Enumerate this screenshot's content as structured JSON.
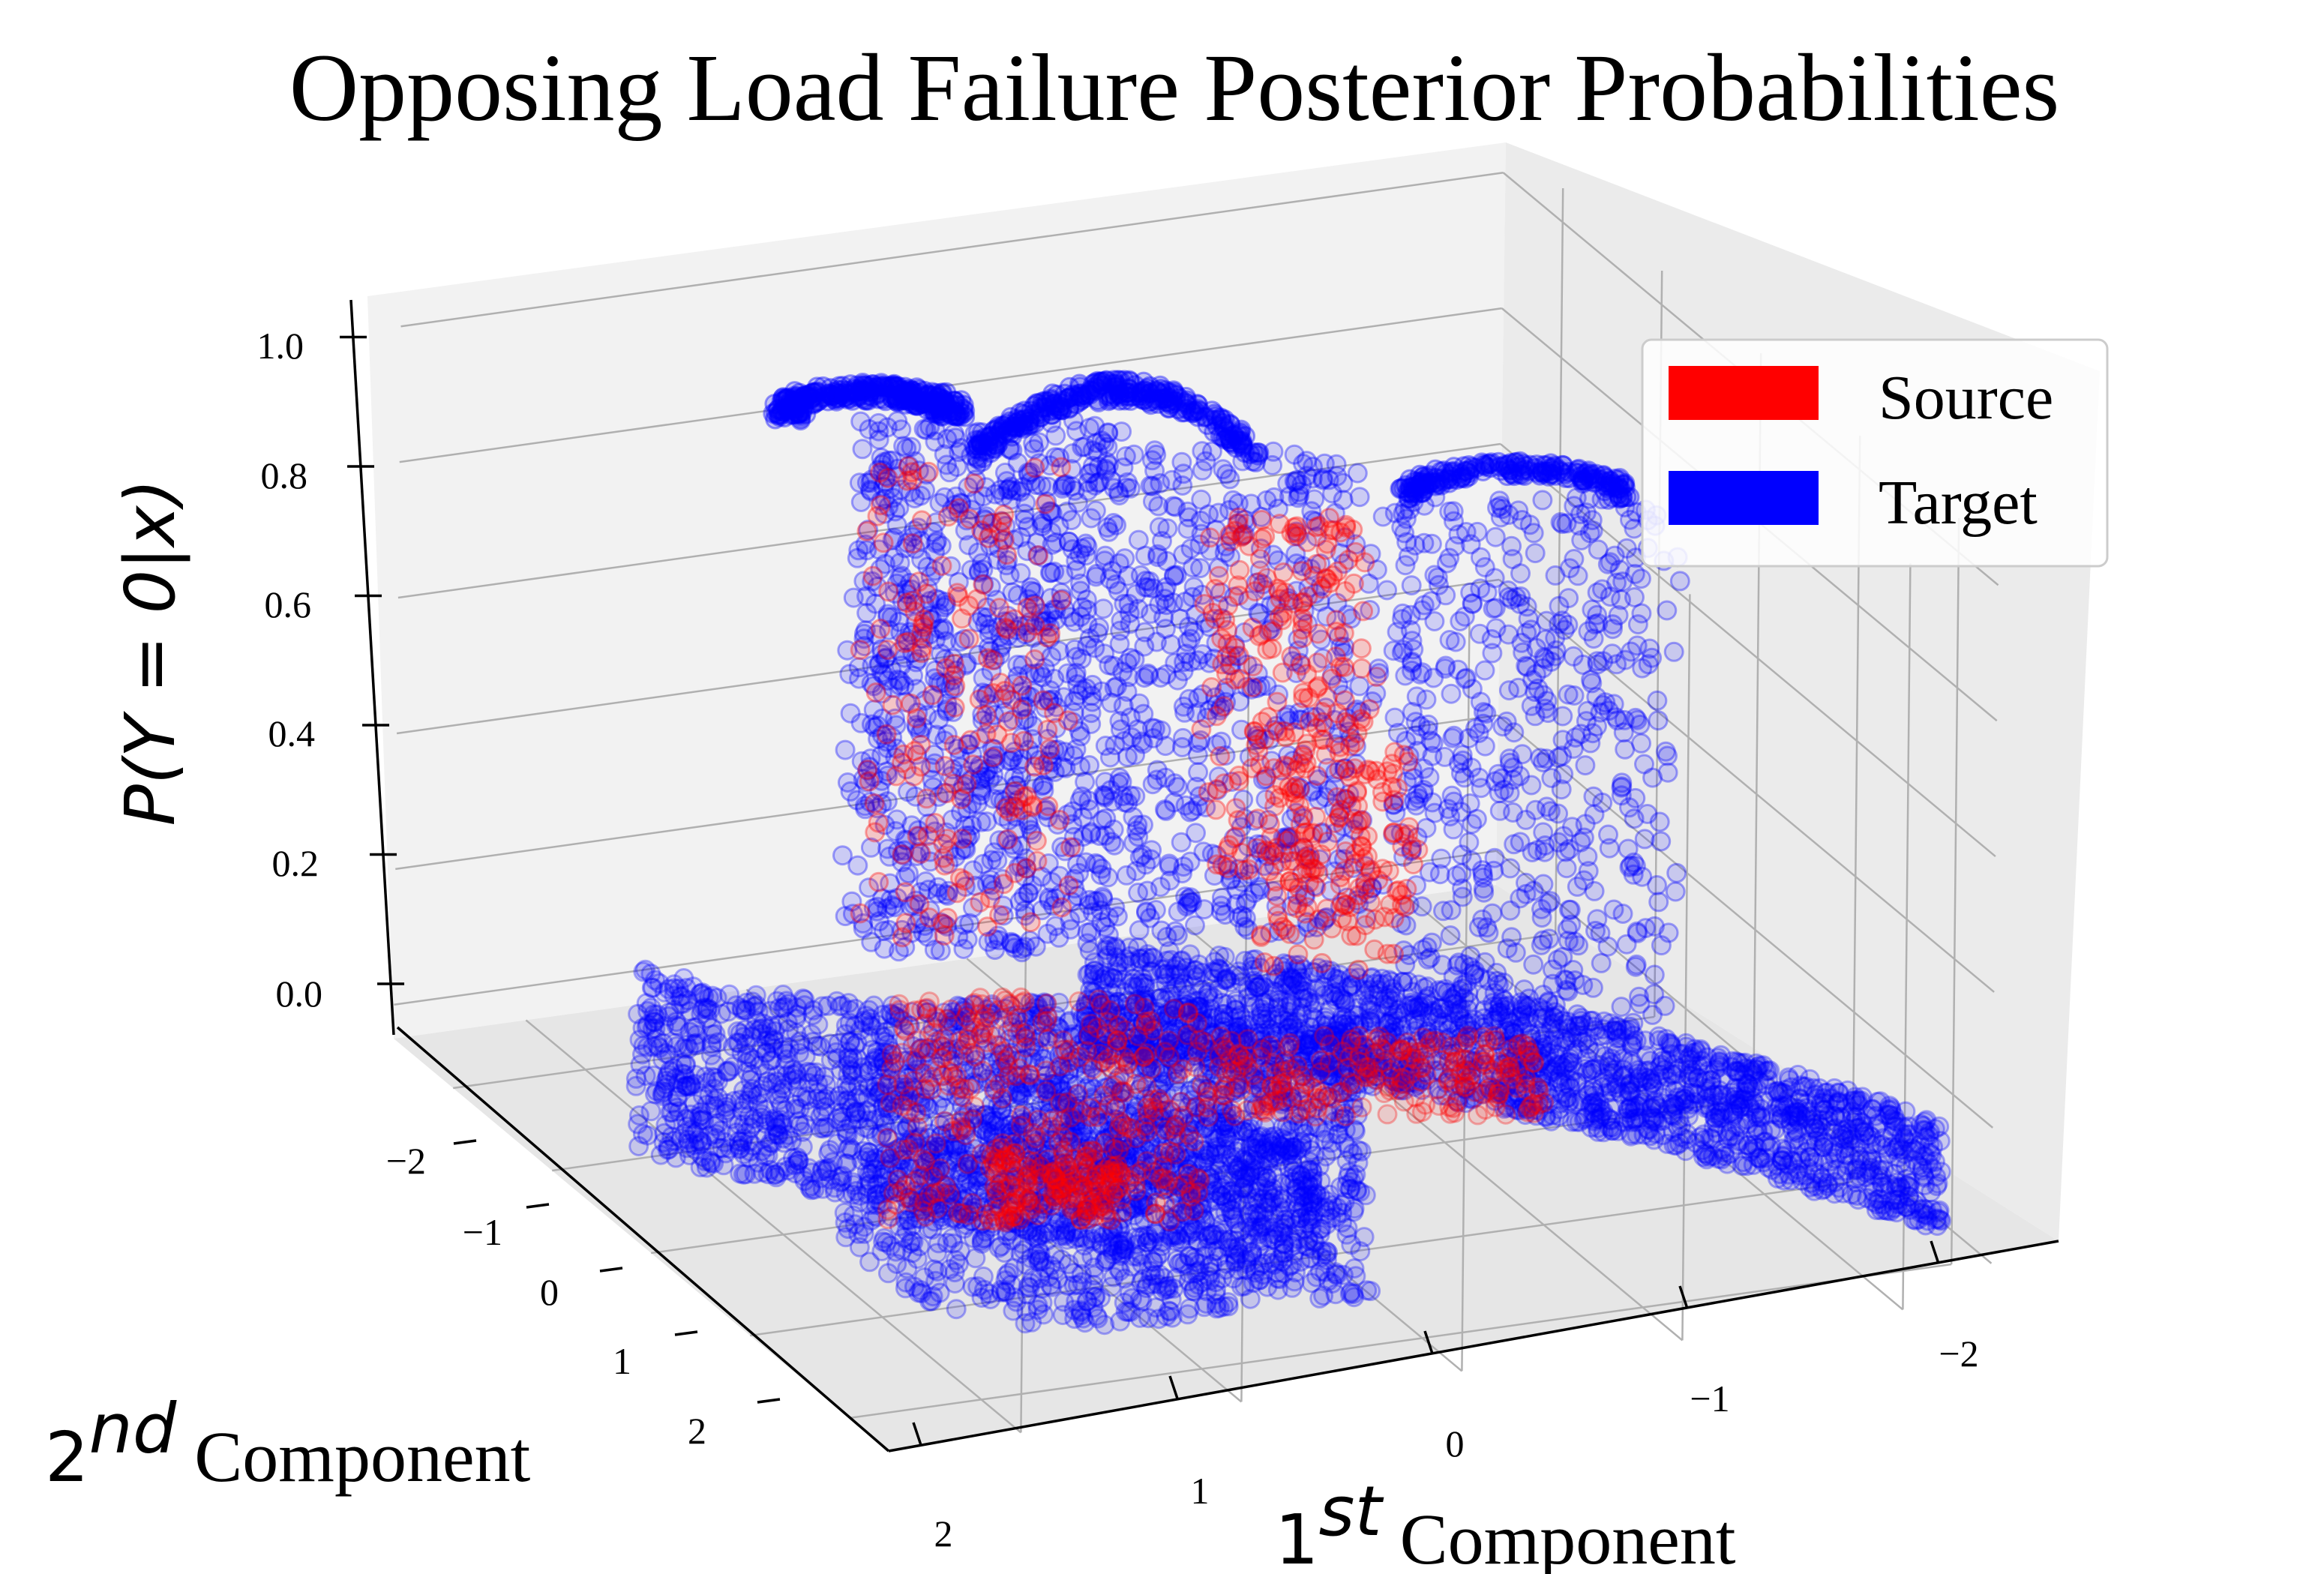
{
  "chart_data": {
    "type": "scatter",
    "subtype": "3d-scatter",
    "title": "Opposing Load Failure Posterior Probabilities",
    "xlabel_base": "1",
    "xlabel_sup": "st",
    "xlabel_text": " Component",
    "ylabel_base": "2",
    "ylabel_sup": "nd",
    "ylabel_text": " Component",
    "zlabel": "P(Y = 0|x)",
    "x_ticks": [
      "2",
      "1",
      "0",
      "−1",
      "−2"
    ],
    "y_ticks": [
      "−2",
      "−1",
      "0",
      "1",
      "2"
    ],
    "z_ticks": [
      "0.0",
      "0.2",
      "0.4",
      "0.6",
      "0.8",
      "1.0"
    ],
    "x_range": [
      -2.6,
      2.4
    ],
    "y_range": [
      -2.6,
      2.4
    ],
    "z_range": [
      -0.05,
      1.05
    ],
    "grid": true,
    "legend_position": "top-right",
    "series": [
      {
        "name": "Source",
        "color": "#ff0000"
      },
      {
        "name": "Target",
        "color": "#0000ff"
      }
    ]
  }
}
